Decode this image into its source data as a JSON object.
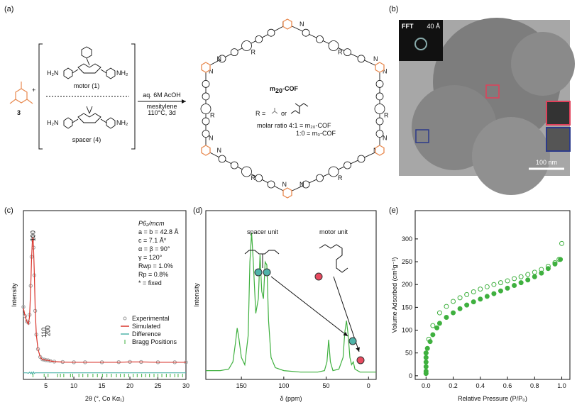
{
  "panels": [
    "(a)",
    "(b)",
    "(c)",
    "(d)",
    "(e)"
  ],
  "scheme": {
    "compound": "3",
    "motor": "motor (1)",
    "spacer": "spacer (4)",
    "amine": [
      "H₂N",
      "NH₂"
    ],
    "conditions": [
      "aq. 6M AcOH",
      "mesitylene",
      "110°C, 3d"
    ],
    "product": [
      "m",
      "20",
      "-COF"
    ],
    "substituent": [
      "R =",
      "or"
    ],
    "ratio": [
      "molar ratio 4:1 = m₂₀-COF",
      "1:0 = m₀-COF"
    ],
    "atoms": [
      "N",
      "R"
    ]
  },
  "micrograph": {
    "inset": [
      "FFT",
      "40 Å"
    ],
    "scale_bar": "100 nm"
  },
  "chart_data": [
    {
      "type": "line",
      "x_label": "2θ (°, Co Kα₁)",
      "y_label": "Intensity",
      "xlim": [
        1,
        30
      ],
      "xticks": [
        5,
        10,
        15,
        20,
        25,
        30
      ],
      "ylim": [
        -8,
        120
      ],
      "x": [
        1.0,
        1.3,
        1.6,
        1.9,
        2.1,
        2.3,
        2.45,
        2.6,
        2.7,
        2.8,
        2.95,
        3.1,
        3.3,
        3.6,
        4.0,
        4.4,
        4.7,
        5.0,
        5.4,
        5.8,
        6.5,
        8,
        10,
        12,
        15,
        18,
        20,
        22,
        25,
        28,
        30
      ],
      "series": [
        {
          "name": "Experimental",
          "color": "#9a9a9a",
          "marker": "circle",
          "values": [
            47,
            40,
            36,
            35,
            41,
            63,
            85,
            98,
            100,
            92,
            71,
            44,
            26,
            15,
            9,
            7.2,
            7,
            6.6,
            6.5,
            6,
            5.5,
            5.2,
            5,
            5,
            5,
            5.1,
            5.3,
            5.2,
            5,
            5,
            5
          ]
        },
        {
          "name": "Simulated",
          "color": "#d9342b",
          "values": [
            46,
            40,
            36,
            34,
            40,
            62,
            84,
            97,
            100,
            93,
            72,
            45,
            26,
            15,
            9,
            7,
            7,
            6.5,
            6.5,
            6,
            5.5,
            5.2,
            5,
            5,
            5,
            5,
            5.3,
            5.3,
            5,
            5,
            5
          ]
        },
        {
          "name": "Difference",
          "color": "#4fb3a9",
          "values": [
            -3,
            -3,
            -3,
            -3.3,
            -2.5,
            -3.6,
            -2.6,
            -3.8,
            -3,
            -2.3,
            -3.5,
            -3,
            -3,
            -3,
            -3,
            -3,
            -3,
            -3,
            -3,
            -3,
            -3,
            -3,
            -3,
            -3,
            -3,
            -3,
            -3,
            -3,
            -3,
            -3,
            -3
          ]
        }
      ],
      "bragg": {
        "name": "Bragg Positions",
        "color": "#3fb03f",
        "positions": [
          2.7,
          4.7,
          5.4,
          7.1,
          7.6,
          8.2,
          9.4,
          9.8,
          10.9,
          11.6,
          12.5,
          13.4,
          14.2,
          15.1,
          15.9,
          16.7,
          17.6,
          18.3,
          19.0,
          19.8,
          20.6,
          21.3,
          22.1,
          22.8,
          23.5,
          24.3,
          25.0,
          25.7,
          26.5,
          27.2,
          28.0,
          28.6,
          29.4
        ]
      },
      "peak_labels": [
        {
          "label": "100",
          "x": 2.7
        },
        {
          "label": "110",
          "x": 4.7
        },
        {
          "label": "200",
          "x": 5.4
        }
      ],
      "refinement": [
        "P6₂/mcm",
        "a = b = 42.8 Å",
        "c = 7.1 Å*",
        "α = β = 90°",
        "γ = 120°",
        "Rwp = 1.0%",
        "Rp = 0.8%",
        "* = fixed"
      ]
    },
    {
      "type": "line",
      "x_label": "δ (ppm)",
      "y_label": "Intensity",
      "xlim": [
        192,
        -9
      ],
      "xticks": [
        150,
        100,
        50,
        0
      ],
      "ylim": [
        0,
        115
      ],
      "x": [
        192,
        175,
        165,
        160,
        157,
        155,
        153,
        150,
        146,
        142,
        140,
        138,
        136,
        133,
        130,
        128,
        126,
        124,
        122,
        120,
        118,
        115,
        110,
        100,
        80,
        60,
        52,
        49,
        47,
        45,
        42,
        35,
        30,
        28,
        26,
        24,
        22,
        20,
        18,
        16,
        10,
        0,
        -9
      ],
      "series": [
        {
          "color": "#3fb03f",
          "values": [
            6,
            6,
            7,
            12,
            25,
            35,
            28,
            15,
            10,
            30,
            80,
            100,
            80,
            45,
            55,
            85,
            60,
            55,
            80,
            78,
            40,
            15,
            8,
            6,
            5,
            5,
            6,
            12,
            27,
            12,
            6,
            7,
            15,
            32,
            40,
            30,
            15,
            10,
            12,
            7,
            5,
            5,
            5
          ]
        }
      ],
      "annotations": [
        "spacer unit",
        "motor unit"
      ]
    },
    {
      "type": "scatter",
      "x_label": "Relative Pressure (P/P₀)",
      "y_label": "Volume Adsorbed (cm³g⁻¹)",
      "xlim": [
        -0.08,
        1.06
      ],
      "xticks": [
        {
          "value": 0,
          "label": "0.0"
        },
        0.2,
        0.4,
        0.6,
        0.8,
        {
          "value": 1,
          "label": "1.0"
        }
      ],
      "ylim": [
        -8,
        362
      ],
      "yticks": [
        0,
        50,
        100,
        150,
        200,
        250,
        300
      ],
      "series": [
        {
          "color": "#3fb03f",
          "marker": "filled",
          "x": [
            0,
            0,
            0,
            0,
            0,
            0,
            0.01,
            0.03,
            0.05,
            0.08,
            0.1,
            0.15,
            0.2,
            0.25,
            0.3,
            0.35,
            0.4,
            0.45,
            0.5,
            0.55,
            0.6,
            0.65,
            0.7,
            0.75,
            0.8,
            0.85,
            0.9,
            0.95,
            0.99
          ],
          "values": [
            5,
            10,
            20,
            30,
            40,
            50,
            60,
            75,
            90,
            105,
            115,
            128,
            138,
            147,
            155,
            162,
            168,
            174,
            180,
            186,
            192,
            198,
            204,
            210,
            217,
            225,
            235,
            245,
            255
          ]
        },
        {
          "color": "#3fb03f",
          "marker": "open",
          "x": [
            1.0,
            0.98,
            0.95,
            0.9,
            0.85,
            0.8,
            0.75,
            0.7,
            0.65,
            0.6,
            0.55,
            0.5,
            0.45,
            0.4,
            0.35,
            0.3,
            0.25,
            0.2,
            0.15,
            0.1,
            0.05,
            0.02,
            0.0
          ],
          "values": [
            290,
            255,
            248,
            240,
            233,
            227,
            222,
            217,
            213,
            208,
            204,
            200,
            195,
            190,
            184,
            178,
            171,
            163,
            152,
            138,
            110,
            80,
            50
          ]
        }
      ]
    }
  ]
}
